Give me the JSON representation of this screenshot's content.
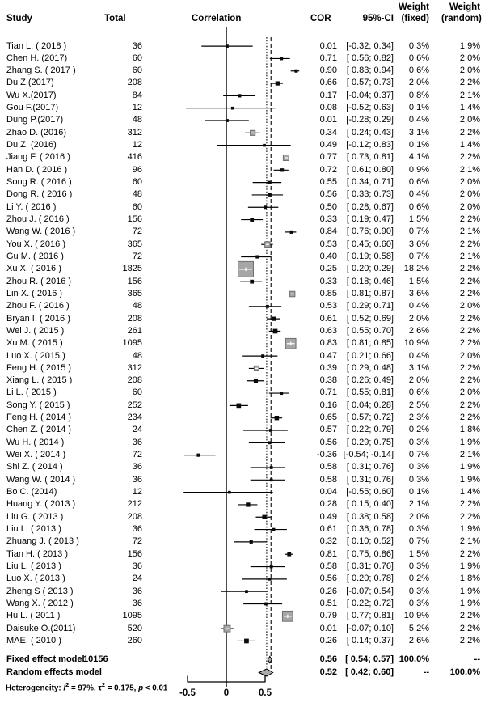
{
  "header": {
    "study": "Study",
    "total": "Total",
    "correlation": "Correlation",
    "cor": "COR",
    "ci": "95%-CI",
    "weight_fixed_line1": "Weight",
    "weight_fixed_line2": "(fixed)",
    "weight_random_line1": "Weight",
    "weight_random_line2": "(random)"
  },
  "colors": {
    "text": "#000000",
    "line": "#000000",
    "big_square_fill": "#a6a6a6",
    "big_square_border": "#6f6f6f",
    "small_square_fill": "#0a0a0a",
    "diamond_fill": "#ababab",
    "background": "#ffffff"
  },
  "chart_data": {
    "type": "forest",
    "x_zero": 0,
    "fixed_line": 0.56,
    "random_line": 0.52,
    "axis_ticks": [
      "-0.5",
      "0",
      "0.5"
    ],
    "xlim": [
      -0.55,
      0.94
    ],
    "studies": [
      {
        "name": "Tian L. ( 2018 )",
        "total": "36",
        "cor": 0.01,
        "lo": -0.32,
        "hi": 0.34,
        "wf": "0.3%",
        "wr": "1.9%"
      },
      {
        "name": "Chen H. (2017)",
        "total": "60",
        "cor": 0.71,
        "lo": 0.56,
        "hi": 0.82,
        "wf": "0.6%",
        "wr": "2.0%"
      },
      {
        "name": "Zhang S. ( 2017 )",
        "total": "60",
        "cor": 0.9,
        "lo": 0.83,
        "hi": 0.94,
        "wf": "0.6%",
        "wr": "2.0%"
      },
      {
        "name": "Du Z.(2017)",
        "total": "208",
        "cor": 0.66,
        "lo": 0.57,
        "hi": 0.73,
        "wf": "2.0%",
        "wr": "2.2%"
      },
      {
        "name": "Wu X.(2017)",
        "total": "84",
        "cor": 0.17,
        "lo": -0.04,
        "hi": 0.37,
        "wf": "0.8%",
        "wr": "2.1%"
      },
      {
        "name": "Gou F.(2017)",
        "total": "12",
        "cor": 0.08,
        "lo": -0.52,
        "hi": 0.63,
        "wf": "0.1%",
        "wr": "1.4%"
      },
      {
        "name": "Dung P.(2017)",
        "total": "48",
        "cor": 0.01,
        "lo": -0.28,
        "hi": 0.29,
        "wf": "0.4%",
        "wr": "2.0%"
      },
      {
        "name": "Zhao D. (2016)",
        "total": "312",
        "cor": 0.34,
        "lo": 0.24,
        "hi": 0.43,
        "wf": "3.1%",
        "wr": "2.2%"
      },
      {
        "name": "Du Z. (2016)",
        "total": "12",
        "cor": 0.49,
        "lo": -0.12,
        "hi": 0.83,
        "wf": "0.1%",
        "wr": "1.4%"
      },
      {
        "name": "Jiang F. ( 2016 )",
        "total": "416",
        "cor": 0.77,
        "lo": 0.73,
        "hi": 0.81,
        "wf": "4.1%",
        "wr": "2.2%"
      },
      {
        "name": "Han D. ( 2016 )",
        "total": "96",
        "cor": 0.72,
        "lo": 0.61,
        "hi": 0.8,
        "wf": "0.9%",
        "wr": "2.1%"
      },
      {
        "name": "Song R. ( 2016 )",
        "total": "60",
        "cor": 0.55,
        "lo": 0.34,
        "hi": 0.71,
        "wf": "0.6%",
        "wr": "2.0%"
      },
      {
        "name": "Dong R. ( 2016 )",
        "total": "48",
        "cor": 0.56,
        "lo": 0.33,
        "hi": 0.73,
        "wf": "0.4%",
        "wr": "2.0%"
      },
      {
        "name": "Li Y. ( 2016 )",
        "total": "60",
        "cor": 0.5,
        "lo": 0.28,
        "hi": 0.67,
        "wf": "0.6%",
        "wr": "2.0%"
      },
      {
        "name": "Zhou J. ( 2016 )",
        "total": "156",
        "cor": 0.33,
        "lo": 0.19,
        "hi": 0.47,
        "wf": "1.5%",
        "wr": "2.2%"
      },
      {
        "name": "Wang W. ( 2016 )",
        "total": "72",
        "cor": 0.84,
        "lo": 0.76,
        "hi": 0.9,
        "wf": "0.7%",
        "wr": "2.1%"
      },
      {
        "name": "You X. ( 2016 )",
        "total": "365",
        "cor": 0.53,
        "lo": 0.45,
        "hi": 0.6,
        "wf": "3.6%",
        "wr": "2.2%"
      },
      {
        "name": "Gu M. ( 2016 )",
        "total": "72",
        "cor": 0.4,
        "lo": 0.19,
        "hi": 0.58,
        "wf": "0.7%",
        "wr": "2.1%"
      },
      {
        "name": "Xu X. ( 2016 )",
        "total": "1825",
        "cor": 0.25,
        "lo": 0.2,
        "hi": 0.29,
        "wf": "18.2%",
        "wr": "2.2%"
      },
      {
        "name": "Zhou R. ( 2016 )",
        "total": "156",
        "cor": 0.33,
        "lo": 0.18,
        "hi": 0.46,
        "wf": "1.5%",
        "wr": "2.2%"
      },
      {
        "name": "Lin X. ( 2016 )",
        "total": "365",
        "cor": 0.85,
        "lo": 0.81,
        "hi": 0.87,
        "wf": "3.6%",
        "wr": "2.2%"
      },
      {
        "name": "Zhou F. ( 2016 )",
        "total": "48",
        "cor": 0.53,
        "lo": 0.29,
        "hi": 0.71,
        "wf": "0.4%",
        "wr": "2.0%"
      },
      {
        "name": "Bryan I. ( 2016 )",
        "total": "208",
        "cor": 0.61,
        "lo": 0.52,
        "hi": 0.69,
        "wf": "2.0%",
        "wr": "2.2%"
      },
      {
        "name": "Wei J. ( 2015 )",
        "total": "261",
        "cor": 0.63,
        "lo": 0.55,
        "hi": 0.7,
        "wf": "2.6%",
        "wr": "2.2%"
      },
      {
        "name": "Xu M. ( 2015 )",
        "total": "1095",
        "cor": 0.83,
        "lo": 0.81,
        "hi": 0.85,
        "wf": "10.9%",
        "wr": "2.2%"
      },
      {
        "name": "Luo X. ( 2015 )",
        "total": "48",
        "cor": 0.47,
        "lo": 0.21,
        "hi": 0.66,
        "wf": "0.4%",
        "wr": "2.0%"
      },
      {
        "name": "Feng H. ( 2015 )",
        "total": "312",
        "cor": 0.39,
        "lo": 0.29,
        "hi": 0.48,
        "wf": "3.1%",
        "wr": "2.2%"
      },
      {
        "name": "Xiang L. ( 2015 )",
        "total": "208",
        "cor": 0.38,
        "lo": 0.26,
        "hi": 0.49,
        "wf": "2.0%",
        "wr": "2.2%"
      },
      {
        "name": "Li L. ( 2015 )",
        "total": "60",
        "cor": 0.71,
        "lo": 0.55,
        "hi": 0.81,
        "wf": "0.6%",
        "wr": "2.0%"
      },
      {
        "name": "Song Y. ( 2015 )",
        "total": "252",
        "cor": 0.16,
        "lo": 0.04,
        "hi": 0.28,
        "wf": "2.5%",
        "wr": "2.2%"
      },
      {
        "name": "Feng H. ( 2014 )",
        "total": "234",
        "cor": 0.65,
        "lo": 0.57,
        "hi": 0.72,
        "wf": "2.3%",
        "wr": "2.2%"
      },
      {
        "name": "Chen Z. ( 2014 )",
        "total": "24",
        "cor": 0.57,
        "lo": 0.22,
        "hi": 0.79,
        "wf": "0.2%",
        "wr": "1.8%"
      },
      {
        "name": "Wu H. ( 2014 )",
        "total": "36",
        "cor": 0.56,
        "lo": 0.29,
        "hi": 0.75,
        "wf": "0.3%",
        "wr": "1.9%"
      },
      {
        "name": "Wei X. ( 2014 )",
        "total": "72",
        "cor": -0.36,
        "lo": -0.54,
        "hi": -0.14,
        "wf": "0.7%",
        "wr": "2.1%"
      },
      {
        "name": "Shi Z. ( 2014 )",
        "total": "36",
        "cor": 0.58,
        "lo": 0.31,
        "hi": 0.76,
        "wf": "0.3%",
        "wr": "1.9%"
      },
      {
        "name": "Wang W. ( 2014 )",
        "total": "36",
        "cor": 0.58,
        "lo": 0.31,
        "hi": 0.76,
        "wf": "0.3%",
        "wr": "1.9%"
      },
      {
        "name": "Bo C. (2014)",
        "total": "12",
        "cor": 0.04,
        "lo": -0.55,
        "hi": 0.6,
        "wf": "0.1%",
        "wr": "1.4%"
      },
      {
        "name": "Huang Y. ( 2013 )",
        "total": "212",
        "cor": 0.28,
        "lo": 0.15,
        "hi": 0.4,
        "wf": "2.1%",
        "wr": "2.2%"
      },
      {
        "name": "Liu G. ( 2013 )",
        "total": "208",
        "cor": 0.49,
        "lo": 0.38,
        "hi": 0.58,
        "wf": "2.0%",
        "wr": "2.2%"
      },
      {
        "name": "Liu L. ( 2013 )",
        "total": "36",
        "cor": 0.61,
        "lo": 0.36,
        "hi": 0.78,
        "wf": "0.3%",
        "wr": "1.9%"
      },
      {
        "name": "Zhuang J. ( 2013 )",
        "total": "72",
        "cor": 0.32,
        "lo": 0.1,
        "hi": 0.52,
        "wf": "0.7%",
        "wr": "2.1%"
      },
      {
        "name": "Tian H. ( 2013 )",
        "total": "156",
        "cor": 0.81,
        "lo": 0.75,
        "hi": 0.86,
        "wf": "1.5%",
        "wr": "2.2%"
      },
      {
        "name": "Liu L. ( 2013 )",
        "total": "36",
        "cor": 0.58,
        "lo": 0.31,
        "hi": 0.76,
        "wf": "0.3%",
        "wr": "1.9%"
      },
      {
        "name": "Luo X. ( 2013 )",
        "total": "24",
        "cor": 0.56,
        "lo": 0.2,
        "hi": 0.78,
        "wf": "0.2%",
        "wr": "1.8%"
      },
      {
        "name": "Zheng S ( 2013 )",
        "total": "36",
        "cor": 0.26,
        "lo": -0.07,
        "hi": 0.54,
        "wf": "0.3%",
        "wr": "1.9%"
      },
      {
        "name": "Wang X. ( 2012 )",
        "total": "36",
        "cor": 0.51,
        "lo": 0.22,
        "hi": 0.72,
        "wf": "0.3%",
        "wr": "1.9%"
      },
      {
        "name": "Hu L. ( 2011 )",
        "total": "1095",
        "cor": 0.79,
        "lo": 0.77,
        "hi": 0.81,
        "wf": "10.9%",
        "wr": "2.2%"
      },
      {
        "name": "Daisuke O.(2011)",
        "total": "520",
        "cor": 0.01,
        "lo": -0.07,
        "hi": 0.1,
        "wf": "5.2%",
        "wr": "2.2%"
      },
      {
        "name": "MAE. ( 2010 )",
        "total": "260",
        "cor": 0.26,
        "lo": 0.14,
        "hi": 0.37,
        "wf": "2.6%",
        "wr": "2.2%"
      }
    ],
    "summary": [
      {
        "name": "Fixed effect model",
        "total": "10156",
        "cor": 0.56,
        "lo": 0.54,
        "hi": 0.57,
        "wf": "100.0%",
        "wr": "--"
      },
      {
        "name": "Random effects model",
        "total": "",
        "cor": 0.52,
        "lo": 0.42,
        "hi": 0.6,
        "wf": "--",
        "wr": "100.0%"
      }
    ],
    "heterogeneity": {
      "prefix": "Heterogeneity: ",
      "i": "I",
      "i_sup": "2",
      "mid1": " = 97%, ",
      "tau": "τ",
      "tau_sup": "2",
      "mid2": " = 0.175, ",
      "p": "p",
      "end": " < 0.01"
    }
  }
}
